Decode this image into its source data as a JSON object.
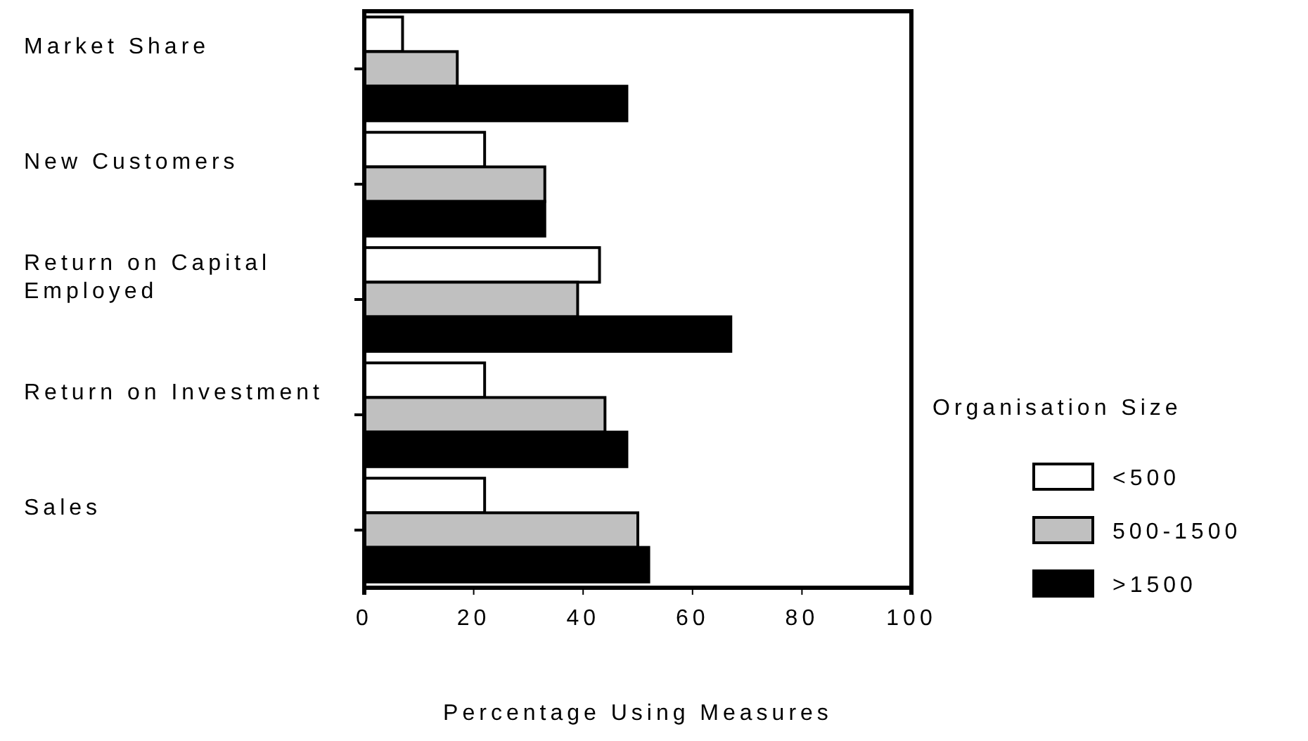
{
  "chart_data": {
    "type": "bar",
    "orientation": "horizontal",
    "xlabel": "Percentage Using Measures",
    "legend_title": "Organisation Size",
    "categories": [
      "Market Share",
      "New Customers",
      "Return on Capital Employed",
      "Return on Investment",
      "Sales"
    ],
    "series": [
      {
        "name": "<500",
        "color": "#ffffff",
        "values": [
          7,
          22,
          43,
          22,
          22
        ]
      },
      {
        "name": "500-1500",
        "color": "#c0c0c0",
        "values": [
          17,
          33,
          39,
          44,
          50
        ]
      },
      {
        "name": ">1500",
        "color": "#000000",
        "values": [
          48,
          33,
          67,
          48,
          52
        ]
      }
    ],
    "xlim": [
      0,
      100
    ],
    "xticks": [
      0,
      20,
      40,
      60,
      80,
      100
    ],
    "grid": false,
    "legend": "right"
  }
}
